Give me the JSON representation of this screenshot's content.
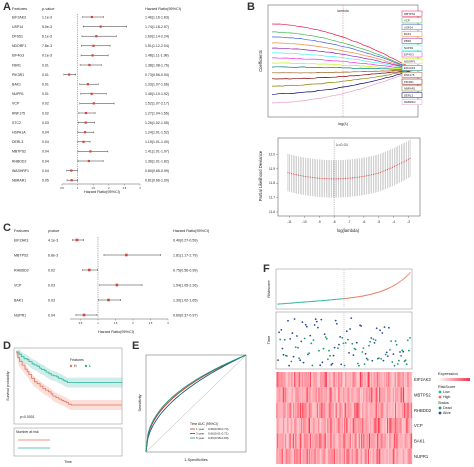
{
  "panels": {
    "A": {
      "letter": "A",
      "headers": {
        "factor": "Features",
        "p": "p-value",
        "hr": "Hazard Ratio(95%CI)"
      },
      "xlabel": "Hazard Ratio(95%CI)",
      "rows": [
        {
          "name": "EIF2AK3",
          "p": "1.1e-3",
          "hr": "1.46(1.16-1.83)",
          "est": 1.46,
          "lo": 1.16,
          "hi": 1.83
        },
        {
          "name": "USP14",
          "p": "5.0e-3",
          "hr": "1.74(1.18-2.57)",
          "est": 1.74,
          "lo": 1.18,
          "hi": 2.57
        },
        {
          "name": "DFS51",
          "p": "6.1e-3",
          "hr": "1.60(1.14-2.24)",
          "est": 1.6,
          "lo": 1.14,
          "hi": 2.24
        },
        {
          "name": "NDORF1",
          "p": "7.8e-3",
          "hr": "1.51(1.12-2.04)",
          "est": 1.51,
          "lo": 1.12,
          "hi": 2.04
        },
        {
          "name": "EIF4G3",
          "p": "0.1e-3",
          "hr": "1.48(1.11-1.98)",
          "est": 1.48,
          "lo": 1.11,
          "hi": 1.98
        },
        {
          "name": "FBR1",
          "p": "0.01",
          "hr": "1.38(1.08-1.76)",
          "est": 1.38,
          "lo": 1.08,
          "hi": 1.76
        },
        {
          "name": "PIK3R1",
          "p": "0.01",
          "hr": "0.73(0.56-0.94)",
          "est": 0.73,
          "lo": 0.56,
          "hi": 0.94
        },
        {
          "name": "BAK1",
          "p": "0.01",
          "hr": "1.33(1.07-1.66)",
          "est": 1.33,
          "lo": 1.07,
          "hi": 1.66
        },
        {
          "name": "NUPR1",
          "p": "0.01",
          "hr": "1.45(1.10-1.92)",
          "est": 1.45,
          "lo": 1.1,
          "hi": 1.92
        },
        {
          "name": "VCP",
          "p": "0.02",
          "hr": "1.52(1.07-2.17)",
          "est": 1.52,
          "lo": 1.07,
          "hi": 2.17
        },
        {
          "name": "RNF175",
          "p": "0.02",
          "hr": "1.27(1.04-1.56)",
          "est": 1.27,
          "lo": 1.04,
          "hi": 1.56
        },
        {
          "name": "STC2",
          "p": "0.03",
          "hr": "1.26(1.02-1.55)",
          "est": 1.26,
          "lo": 1.02,
          "hi": 1.55
        },
        {
          "name": "HSPA1A",
          "p": "0.04",
          "hr": "1.24(1.01-1.52)",
          "est": 1.24,
          "lo": 1.01,
          "hi": 1.52
        },
        {
          "name": "DERL3",
          "p": "0.04",
          "hr": "1.19(1.01-1.40)",
          "est": 1.19,
          "lo": 1.01,
          "hi": 1.4
        },
        {
          "name": "MBTPS2",
          "p": "0.04",
          "hr": "1.41(1.01-1.97)",
          "est": 1.41,
          "lo": 1.01,
          "hi": 1.97
        },
        {
          "name": "RHBDD2",
          "p": "0.04",
          "hr": "1.36(1.01-1.82)",
          "est": 1.36,
          "lo": 1.01,
          "hi": 1.82
        },
        {
          "name": "WASHRF1",
          "p": "0.04",
          "hr": "0.80(0.65-0.99)",
          "est": 0.8,
          "lo": 0.65,
          "hi": 0.99
        },
        {
          "name": "NBRAR1",
          "p": "0.05",
          "hr": "0.81(0.66-1.00)",
          "est": 0.81,
          "lo": 0.66,
          "hi": 1.0
        }
      ]
    },
    "B": {
      "letter": "B",
      "top": {
        "ylabel": "Coefficients",
        "xlabel": "log(λ)",
        "annot": "lambda",
        "legend": [
          "MBTPS2",
          "VCP",
          "USP14",
          "BAK1",
          "PBR1",
          "NUPR1",
          "EIF4G3",
          "NDORF1",
          "EIF2AK3",
          "RNF175",
          "PIK3R1",
          "NBRAR1",
          "DERL3",
          "RHBDD2"
        ]
      },
      "bottom": {
        "ylabel": "Partial Likelihood Deviance",
        "xlabel": "log(lambda)",
        "annot": "λ=0.01",
        "yticks": [
          "12.0",
          "11.9",
          "11.8",
          "11.7",
          "11.6"
        ],
        "xticks": [
          "-11",
          "-10",
          "-9",
          "-8",
          "-7",
          "-6",
          "-5",
          "-4",
          "-3"
        ]
      }
    },
    "C": {
      "letter": "C",
      "headers": {
        "factor": "Features",
        "p": "pvalue",
        "hr": "Hazard Ratio(95%CI)"
      },
      "xlabel": "Hazard Ratio(95%CI)",
      "rows": [
        {
          "name": "EIF2AK3",
          "p": "4.1e-3",
          "hr": "0.40(0.27-0.59)",
          "est": 0.4,
          "lo": 0.27,
          "hi": 0.59
        },
        {
          "name": "MBTPS2",
          "p": "6.8e-3",
          "hr": "1.81(1.17-2.79)",
          "est": 1.81,
          "lo": 1.17,
          "hi": 2.79
        },
        {
          "name": "RHBDD2",
          "p": "0.02",
          "hr": "0.75(0.56-0.99)",
          "est": 0.75,
          "lo": 0.56,
          "hi": 0.99
        },
        {
          "name": "VCP",
          "p": "0.03",
          "hr": "1.54(1.05-2.26)",
          "est": 1.54,
          "lo": 1.05,
          "hi": 2.26
        },
        {
          "name": "BAK1",
          "p": "0.03",
          "hr": "1.30(1.02-1.65)",
          "est": 1.3,
          "lo": 1.02,
          "hi": 1.65
        },
        {
          "name": "NUPR1",
          "p": "0.04",
          "hr": "0.60(0.37-0.97)",
          "est": 0.6,
          "lo": 0.37,
          "hi": 0.97
        }
      ]
    },
    "D": {
      "letter": "D",
      "ylabel": "Survival probability",
      "xlabel": "Time",
      "legend_title": "Features",
      "legend": [
        "H",
        "L"
      ],
      "pvalue": "p<0.0001",
      "risk_title": "Number at risk",
      "colors": {
        "high": "#e8735a",
        "low": "#2bb39a"
      }
    },
    "E": {
      "letter": "E",
      "ylabel": "Sensitivity",
      "xlabel": "1-Specificities",
      "legend_title": "Time   AUC (95%CI)",
      "legend": [
        "1 year",
        "3 year",
        "5 year"
      ],
      "auc": [
        "0.68(0.58-0.74)",
        "0.66(0.61-0.71)",
        "0.69(0.58-0.80)"
      ],
      "colors": [
        "#c0392b",
        "#1a5a8a",
        "#1a9a7a"
      ]
    },
    "F": {
      "letter": "F",
      "risk_ylabel": "Riskscore",
      "time_ylabel": "Time",
      "genes": [
        "EIF2AK3",
        "MBTPS2",
        "RHBDD2",
        "VCP",
        "BAK1",
        "NUPR1"
      ],
      "expr_title": "Expression",
      "risk_legend_title": "RiskScore",
      "risk_legend": [
        "Low",
        "High"
      ],
      "status_legend_title": "Status",
      "status_legend": [
        "Dead",
        "Alive"
      ],
      "colors": {
        "low": "#2bb39a",
        "high": "#e8735a",
        "dead": "#1a9a6a",
        "alive": "#2a4a9a"
      }
    }
  },
  "chart_data": [
    {
      "type": "forest",
      "panel": "A",
      "estimates": [
        1.46,
        1.74,
        1.6,
        1.51,
        1.48,
        1.38,
        0.73,
        1.33,
        1.45,
        1.52,
        1.27,
        1.26,
        1.24,
        1.19,
        1.41,
        1.36,
        0.8,
        0.81
      ],
      "reference": 1
    },
    {
      "type": "line",
      "panel": "B-top",
      "xlabel": "log(λ)",
      "ylabel": "Coefficients",
      "series_count": 14
    },
    {
      "type": "scatter",
      "panel": "B-bottom",
      "xlabel": "log(lambda)",
      "ylabel": "Partial Likelihood Deviance",
      "ylim": [
        11.6,
        12.1
      ],
      "xlim": [
        -11.5,
        -2.5
      ],
      "min_lambda_log": -8
    },
    {
      "type": "forest",
      "panel": "C",
      "estimates": [
        0.4,
        1.81,
        0.75,
        1.54,
        1.3,
        0.6
      ],
      "reference": 1
    },
    {
      "type": "line",
      "panel": "D",
      "ylabel": "Survival probability",
      "xlabel": "Time",
      "series": [
        {
          "name": "H"
        },
        {
          "name": "L"
        }
      ]
    },
    {
      "type": "line",
      "panel": "E",
      "ylabel": "Sensitivity",
      "xlabel": "1-Specificities",
      "series": [
        {
          "name": "1 year",
          "auc": 0.68
        },
        {
          "name": "3 year",
          "auc": 0.66
        },
        {
          "name": "5 year",
          "auc": 0.69
        }
      ]
    },
    {
      "type": "heatmap",
      "panel": "F",
      "rows": [
        "EIF2AK3",
        "MBTPS2",
        "RHBDD2",
        "VCP",
        "BAK1",
        "NUPR1"
      ]
    }
  ]
}
